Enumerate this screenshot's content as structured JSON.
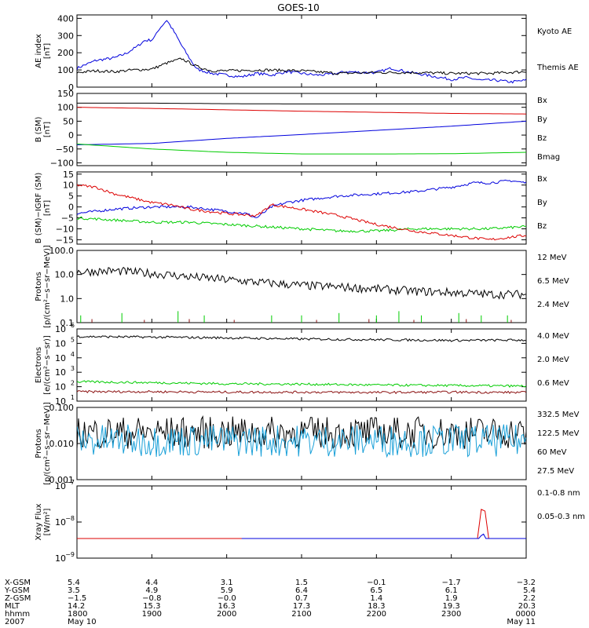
{
  "title": "GOES-10",
  "colors": {
    "black": "#000000",
    "blue": "#0000dd",
    "red": "#dd0000",
    "green": "#00cc00",
    "cyan": "#1aa0d8",
    "yellow": "#ffd000",
    "brown": "#8b1010"
  },
  "chart_data": [
    {
      "type": "line",
      "panel": "ae",
      "ylabel": [
        "AE index",
        "[nT]"
      ],
      "ylim": [
        0,
        420
      ],
      "yscale": "linear",
      "yticks": [
        {
          "v": 0,
          "l": "0"
        },
        {
          "v": 100,
          "l": "100"
        },
        {
          "v": 200,
          "l": "200"
        },
        {
          "v": 300,
          "l": "300"
        },
        {
          "v": 400,
          "l": "400"
        }
      ],
      "series": [
        {
          "name": "Kyoto AE",
          "color": "blue",
          "x": [
            0,
            0.25,
            0.5,
            0.65,
            0.8,
            0.9,
            1.0,
            1.05,
            1.1,
            1.2,
            1.3,
            1.4,
            1.5,
            1.6,
            1.8,
            2.0,
            2.2,
            2.4,
            2.6,
            2.8,
            3.0,
            3.2,
            3.4,
            3.6,
            3.8,
            4.0,
            4.2,
            4.4,
            4.6,
            4.8,
            5.0,
            5.2,
            5.4,
            5.6,
            5.8,
            6.0
          ],
          "y": [
            110,
            155,
            170,
            195,
            235,
            270,
            275,
            300,
            340,
            390,
            320,
            240,
            170,
            105,
            80,
            70,
            60,
            80,
            70,
            90,
            80,
            70,
            75,
            90,
            85,
            85,
            110,
            90,
            75,
            60,
            45,
            55,
            40,
            40,
            30,
            40
          ]
        },
        {
          "name": "Themis AE",
          "color": "black",
          "x": [
            0,
            0.25,
            0.5,
            0.75,
            1.0,
            1.2,
            1.4,
            1.6,
            1.8,
            2.0,
            2.5,
            3.0,
            3.5,
            4.0,
            4.5,
            5.0,
            5.5,
            6.0
          ],
          "y": [
            85,
            95,
            90,
            100,
            105,
            140,
            165,
            120,
            95,
            95,
            100,
            95,
            80,
            85,
            85,
            80,
            80,
            90
          ]
        }
      ],
      "legend": [
        {
          "label": "Kyoto AE",
          "color": "blue"
        },
        {
          "label": "Themis AE",
          "color": "black"
        }
      ]
    },
    {
      "type": "line",
      "panel": "b",
      "ylabel": [
        "B (SM)",
        "[nT]"
      ],
      "ylim": [
        -110,
        150
      ],
      "yscale": "linear",
      "yticks": [
        {
          "v": 150,
          "l": "150"
        },
        {
          "v": 100,
          "l": "100"
        },
        {
          "v": 50,
          "l": "50"
        },
        {
          "v": 0,
          "l": "0"
        },
        {
          "v": -50,
          "l": "−50"
        },
        {
          "v": -100,
          "l": "−100"
        }
      ],
      "series": [
        {
          "name": "Bx",
          "color": "blue",
          "x": [
            0,
            1,
            2,
            3,
            4,
            5,
            6
          ],
          "y": [
            -35,
            -30,
            -12,
            2,
            17,
            32,
            50
          ]
        },
        {
          "name": "By",
          "color": "green",
          "x": [
            0,
            1,
            2,
            3,
            4,
            5,
            6
          ],
          "y": [
            -32,
            -50,
            -62,
            -68,
            -68,
            -67,
            -62
          ]
        },
        {
          "name": "Bz",
          "color": "red",
          "x": [
            0,
            1,
            2,
            3,
            4,
            5,
            6
          ],
          "y": [
            100,
            96,
            91,
            86,
            82,
            78,
            76
          ]
        },
        {
          "name": "Bmag",
          "color": "black",
          "x": [
            0,
            1,
            2,
            3,
            4,
            5,
            6
          ],
          "y": [
            115,
            115,
            113,
            112,
            112,
            112,
            112
          ]
        }
      ],
      "legend": [
        {
          "label": "Bx",
          "color": "blue"
        },
        {
          "label": "By",
          "color": "green"
        },
        {
          "label": "Bz",
          "color": "red"
        },
        {
          "label": "Bmag",
          "color": "black"
        }
      ]
    },
    {
      "type": "line",
      "panel": "bdiff",
      "ylabel": [
        "B (SM)−IGRF (SM)",
        "[nT]"
      ],
      "ylim": [
        -17,
        16
      ],
      "yscale": "linear",
      "yticks": [
        {
          "v": 15,
          "l": "15"
        },
        {
          "v": 10,
          "l": "10"
        },
        {
          "v": 5,
          "l": "5"
        },
        {
          "v": 0,
          "l": "0"
        },
        {
          "v": -5,
          "l": "−5"
        },
        {
          "v": -10,
          "l": "−10"
        },
        {
          "v": -15,
          "l": "−15"
        }
      ],
      "series": [
        {
          "name": "Bx",
          "color": "blue",
          "x": [
            0,
            0.5,
            1.0,
            1.5,
            2.0,
            2.25,
            2.4,
            2.6,
            2.8,
            3.0,
            3.5,
            4.0,
            4.5,
            5.0,
            5.3,
            5.5,
            5.8,
            6.0
          ],
          "y": [
            -3,
            -1,
            0,
            0,
            -2,
            -3,
            -5,
            0,
            2,
            3,
            5,
            6,
            7,
            9,
            11,
            11,
            12,
            11
          ]
        },
        {
          "name": "By",
          "color": "green",
          "x": [
            0,
            0.5,
            1.0,
            1.5,
            2.0,
            2.5,
            3.0,
            3.5,
            4.0,
            4.5,
            5.0,
            5.5,
            6.0
          ],
          "y": [
            -5,
            -6,
            -7,
            -7,
            -8,
            -9,
            -10,
            -11,
            -11,
            -10,
            -10,
            -10,
            -9
          ]
        },
        {
          "name": "Bz",
          "color": "red",
          "x": [
            0,
            0.25,
            0.5,
            0.75,
            1.0,
            1.25,
            1.5,
            1.75,
            2.0,
            2.4,
            2.6,
            2.8,
            3.0,
            3.5,
            4.0,
            4.5,
            5.0,
            5.5,
            6.0
          ],
          "y": [
            10,
            9,
            6,
            4,
            2,
            1,
            -1,
            -2,
            -3,
            -4,
            1,
            0,
            -1,
            -4,
            -8,
            -11,
            -13,
            -15,
            -13
          ]
        }
      ],
      "legend": [
        {
          "label": "Bx",
          "color": "blue"
        },
        {
          "label": "By",
          "color": "green"
        },
        {
          "label": "Bz",
          "color": "red"
        }
      ]
    },
    {
      "type": "line",
      "panel": "protons_low",
      "ylabel": [
        "Protons",
        "[p/(cm²−s−sr−MeV)]"
      ],
      "ylim": [
        0.1,
        100
      ],
      "yscale": "log",
      "yticks": [
        {
          "v": 100,
          "l": "100.0"
        },
        {
          "v": 10,
          "l": "10.0"
        },
        {
          "v": 1,
          "l": "1.0"
        },
        {
          "v": 0.1,
          "l": "0.1"
        }
      ],
      "series": [
        {
          "name": "2.4 MeV",
          "color": "black",
          "x": [
            0,
            0.5,
            1.0,
            1.5,
            2.0,
            2.5,
            3.0,
            3.5,
            4.0,
            4.5,
            5.0,
            5.5,
            6.0
          ],
          "y": [
            13,
            14,
            11,
            8,
            6,
            4.5,
            3.5,
            3,
            2.5,
            2,
            1.8,
            1.5,
            1.5
          ]
        },
        {
          "name": "6.5 MeV",
          "color": "green",
          "x": [
            0.05,
            0.6,
            1.35,
            1.7,
            2.6,
            3.0,
            3.5,
            4.0,
            4.3,
            4.6,
            5.1,
            5.4,
            5.75
          ],
          "y": [
            0.2,
            0.25,
            0.3,
            0.2,
            0.2,
            0.2,
            0.25,
            0.2,
            0.3,
            0.2,
            0.25,
            0.2,
            0.2
          ]
        },
        {
          "name": "12 MeV",
          "color": "brown",
          "x": [
            0.2,
            0.9,
            1.5,
            2.1,
            3.2,
            3.9,
            4.5,
            5.2,
            5.8
          ],
          "y": [
            0.14,
            0.13,
            0.14,
            0.13,
            0.13,
            0.14,
            0.13,
            0.14,
            0.13
          ]
        }
      ],
      "legend": [
        {
          "label": "12 MeV",
          "color": "brown"
        },
        {
          "label": "6.5 MeV",
          "color": "green"
        },
        {
          "label": "2.4 MeV",
          "color": "black"
        }
      ]
    },
    {
      "type": "line",
      "panel": "electrons",
      "ylabel": [
        "Electrons",
        "[e/(cm²−s−sr)]"
      ],
      "ylim": [
        10,
        1000000
      ],
      "yscale": "log",
      "yticks": [
        {
          "v": 1000000,
          "l": "6"
        },
        {
          "v": 100000,
          "l": "5"
        },
        {
          "v": 10000,
          "l": "4"
        },
        {
          "v": 1000,
          "l": "3"
        },
        {
          "v": 100,
          "l": "2"
        },
        {
          "v": 10,
          "l": "1"
        }
      ],
      "series": [
        {
          "name": "0.6 MeV",
          "color": "black",
          "x": [
            0,
            1,
            2,
            3,
            4,
            5,
            6
          ],
          "y": [
            300000,
            270000,
            240000,
            200000,
            180000,
            160000,
            170000
          ]
        },
        {
          "name": "2.0 MeV",
          "color": "green",
          "x": [
            0,
            1,
            2,
            3,
            4,
            5,
            6
          ],
          "y": [
            220,
            190,
            160,
            150,
            130,
            120,
            110
          ]
        },
        {
          "name": "4.0 MeV",
          "color": "brown",
          "x": [
            0,
            1,
            2,
            3,
            4,
            5,
            6
          ],
          "y": [
            45,
            45,
            42,
            42,
            40,
            42,
            40
          ]
        }
      ],
      "legend": [
        {
          "label": "4.0 MeV",
          "color": "brown"
        },
        {
          "label": "2.0 MeV",
          "color": "green"
        },
        {
          "label": "0.6 MeV",
          "color": "black"
        }
      ]
    },
    {
      "type": "line",
      "panel": "protons_high",
      "ylabel": [
        "Protons",
        "[p/(cm²−s−sr−MeV)]"
      ],
      "ylim": [
        0.001,
        0.1
      ],
      "yscale": "log",
      "yticks": [
        {
          "v": 0.1,
          "l": "0.100"
        },
        {
          "v": 0.01,
          "l": "0.010"
        },
        {
          "v": 0.001,
          "l": "0.001"
        }
      ],
      "series": [
        {
          "name": "27.5 MeV",
          "color": "black",
          "x": [
            0,
            1,
            2,
            3,
            4,
            5,
            6
          ],
          "y": [
            0.02,
            0.02,
            0.02,
            0.02,
            0.02,
            0.02,
            0.02
          ]
        },
        {
          "name": "60 MeV",
          "color": "cyan",
          "x": [
            0,
            1,
            2,
            3,
            4,
            5,
            6
          ],
          "y": [
            0.012,
            0.012,
            0.012,
            0.012,
            0.012,
            0.012,
            0.012
          ]
        }
      ],
      "legend": [
        {
          "label": "332.5 MeV",
          "color": "red"
        },
        {
          "label": "122.5 MeV",
          "color": "yellow"
        },
        {
          "label": "60 MeV",
          "color": "cyan"
        },
        {
          "label": "27.5 MeV",
          "color": "black"
        }
      ]
    },
    {
      "type": "line",
      "panel": "xray",
      "ylabel": [
        "Xray Flux",
        "[W/m²]"
      ],
      "ylim": [
        1e-09,
        1e-07
      ],
      "yscale": "log",
      "yticks": [
        {
          "v": 1e-07,
          "l": "−7"
        },
        {
          "v": 1e-08,
          "l": "−8"
        },
        {
          "v": 1e-09,
          "l": "−9"
        }
      ],
      "series": [
        {
          "name": "0.1-0.8 nm",
          "color": "red",
          "x": [
            0,
            5.25,
            5.35,
            5.42,
            5.5,
            5.6,
            6.0
          ],
          "y": [
            3.5e-09,
            3.5e-09,
            3.5e-09,
            3e-08,
            3.5e-09,
            3.5e-09,
            3.5e-09
          ]
        },
        {
          "name": "0.05-0.3 nm",
          "color": "blue",
          "x": [
            2.2,
            5.38,
            5.42,
            5.46,
            6.0
          ],
          "y": [
            3.5e-09,
            3.5e-09,
            5e-09,
            3.5e-09,
            3.5e-09
          ]
        }
      ],
      "legend": [
        {
          "label": "0.1-0.8 nm",
          "color": "red"
        },
        {
          "label": "0.05-0.3 nm",
          "color": "blue"
        }
      ]
    }
  ],
  "x_axis": {
    "range": [
      0,
      6
    ],
    "row_labels": [
      "X-GSM",
      "Y-GSM",
      "Z-GSM",
      "MLT",
      "hhmm",
      "2007"
    ],
    "columns": [
      {
        "x": 0,
        "values": [
          "5.4",
          "3.5",
          "−1.5",
          "14.2",
          "1800",
          "May 10"
        ]
      },
      {
        "x": 1,
        "values": [
          "4.4",
          "4.9",
          "−0.8",
          "15.3",
          "1900",
          ""
        ]
      },
      {
        "x": 2,
        "values": [
          "3.1",
          "5.9",
          "−0.0",
          "16.3",
          "2000",
          ""
        ]
      },
      {
        "x": 3,
        "values": [
          "1.5",
          "6.4",
          "0.7",
          "17.3",
          "2100",
          ""
        ]
      },
      {
        "x": 4,
        "values": [
          "−0.1",
          "6.5",
          "1.4",
          "18.3",
          "2200",
          ""
        ]
      },
      {
        "x": 5,
        "values": [
          "−1.7",
          "6.1",
          "1.9",
          "19.3",
          "2300",
          ""
        ]
      },
      {
        "x": 6,
        "values": [
          "−3.2",
          "5.4",
          "2.2",
          "20.3",
          "0000",
          "May 11"
        ]
      }
    ]
  }
}
